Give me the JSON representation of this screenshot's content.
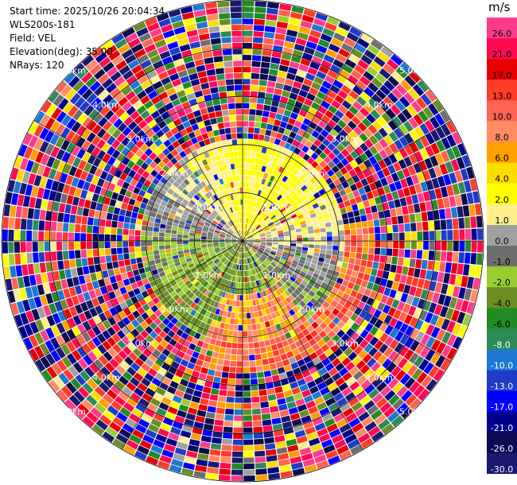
{
  "header": {
    "start_time": "Start time: 2025/10/26 20:04:34",
    "instrument": "WLS200s-181",
    "field": "Field: VEL",
    "elevation": "Elevation(deg): 35.00",
    "nrays": "NRays: 120"
  },
  "colorbar": {
    "unit": "m/s",
    "ticks": [
      "26.0",
      "21.0",
      "17.0",
      "13.0",
      "10.0",
      "8.0",
      "6.0",
      "4.0",
      "2.0",
      "1.0",
      "0.0",
      "-1.0",
      "-2.0",
      "-4.0",
      "-6.0",
      "-8.0",
      "-10.0",
      "-13.0",
      "-17.0",
      "-21.0",
      "-26.0",
      "-30.0"
    ],
    "colors": [
      "#ff3c8c",
      "#ff0a50",
      "#e60000",
      "#ff3c28",
      "#ff6450",
      "#ff8c64",
      "#ffa000",
      "#ffdc00",
      "#ffff00",
      "#fff08c",
      "#a0a0a0",
      "#6e6e6e",
      "#9acd32",
      "#6b8e23",
      "#228b22",
      "#2e8b57",
      "#1e78d2",
      "#1e3cc8",
      "#0000ff",
      "#00008b",
      "#0a0a50",
      "#191970"
    ]
  },
  "chart_data": {
    "type": "ppi",
    "field": "VEL",
    "units": "m/s",
    "elevation_deg": 35.0,
    "nrays": 120,
    "range_rings_km": [
      1.0,
      2.0,
      3.0,
      4.0,
      5.0
    ],
    "ring_labels": [
      "1.0km",
      "2.0km",
      "3.0km",
      "4.0km",
      "5.0km"
    ],
    "max_range_km": 5.0,
    "azimuth_lines_deg": [
      0,
      30,
      60,
      90,
      120,
      150,
      180,
      210,
      240,
      270,
      300,
      330
    ],
    "vmin": -30.0,
    "vmax": 30.0,
    "colormap_levels": [
      -30.0,
      -26.0,
      -21.0,
      -17.0,
      -13.0,
      -10.0,
      -8.0,
      -6.0,
      -4.0,
      -2.0,
      -1.0,
      0.0,
      1.0,
      2.0,
      4.0,
      6.0,
      8.0,
      10.0,
      13.0,
      17.0,
      21.0,
      26.0,
      30.0
    ]
  }
}
